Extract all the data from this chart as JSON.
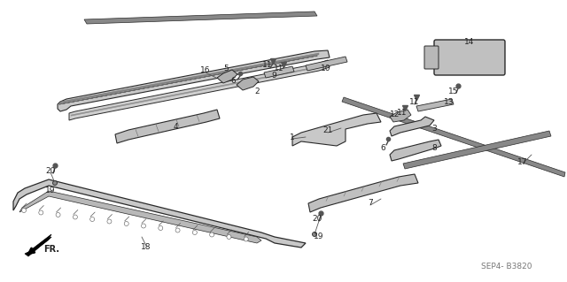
{
  "bg_color": "#ffffff",
  "line_color": "#2a2a2a",
  "fig_width": 6.4,
  "fig_height": 3.19,
  "dpi": 100,
  "diagram_code": "SEP4- B3820",
  "text_color": "#222222",
  "diagram_ref_color": "#777777"
}
